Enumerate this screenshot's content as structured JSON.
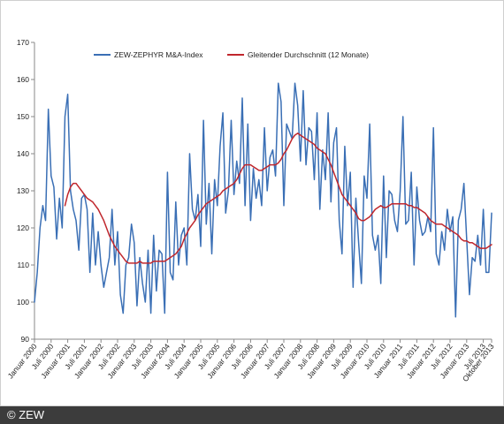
{
  "footer": {
    "credit": "© ZEW"
  },
  "chart_data": {
    "type": "line",
    "title": "",
    "xlabel": "",
    "ylabel": "",
    "ylim": [
      90,
      170
    ],
    "yticks": [
      90,
      100,
      110,
      120,
      130,
      140,
      150,
      160,
      170
    ],
    "grid": false,
    "legend_position": "top",
    "x_tick_labels": [
      "Januar 2000",
      "Juli 2000",
      "Januar 2001",
      "Juli 2001",
      "Januar 2002",
      "Juli 2002",
      "Januar 2003",
      "Juli 2003",
      "Januar 2004",
      "Juli 2004",
      "Januar 2005",
      "Juli 2005",
      "Januar 2006",
      "Juli 2006",
      "Januar 2007",
      "Juli 2007",
      "Januar 2008",
      "Juli 2008",
      "Januar 2009",
      "Juli 2009",
      "Januar 2010",
      "Juli 2010",
      "Januar 2011",
      "Juli 2011",
      "Januar 2012",
      "Juli 2012",
      "Januar 2013",
      "Juli 2013",
      "Oktober 2013"
    ],
    "x_tick_months": [
      0,
      6,
      12,
      18,
      24,
      30,
      36,
      42,
      48,
      54,
      60,
      66,
      72,
      78,
      84,
      90,
      96,
      102,
      108,
      114,
      120,
      126,
      132,
      138,
      144,
      150,
      156,
      162,
      165
    ],
    "x_range_months": [
      0,
      165
    ],
    "series": [
      {
        "name": "ZEW-ZEPHYR M&A-Index",
        "color": "#3a6fb5",
        "values": [
          100,
          108,
          120,
          126,
          122,
          152,
          134,
          131,
          117,
          128,
          120,
          150,
          156,
          130,
          125,
          122,
          114,
          128,
          129,
          125,
          108,
          124,
          110,
          119,
          110,
          104,
          108,
          112,
          125,
          110,
          119,
          102,
          97,
          110,
          112,
          121,
          116,
          99,
          112,
          105,
          100,
          114,
          97,
          118,
          103,
          114,
          113,
          97,
          135,
          108,
          106,
          127,
          110,
          118,
          120,
          110,
          140,
          125,
          122,
          129,
          115,
          149,
          121,
          132,
          113,
          133,
          126,
          142,
          151,
          124,
          130,
          149,
          129,
          138,
          132,
          155,
          126,
          148,
          122,
          136,
          128,
          133,
          126,
          147,
          130,
          139,
          141,
          134,
          159,
          154,
          126,
          148,
          146,
          144,
          159,
          153,
          138,
          157,
          137,
          147,
          146,
          133,
          151,
          125,
          141,
          133,
          151,
          127,
          143,
          147,
          122,
          113,
          142,
          126,
          135,
          104,
          128,
          116,
          105,
          134,
          128,
          148,
          118,
          114,
          118,
          105,
          134,
          112,
          130,
          129,
          122,
          119,
          130,
          150,
          121,
          122,
          135,
          110,
          131,
          122,
          118,
          119,
          123,
          119,
          147,
          113,
          110,
          119,
          114,
          125,
          119,
          123,
          96,
          122,
          125,
          132,
          117,
          102,
          112,
          111,
          118,
          110,
          125,
          108,
          108,
          124
        ],
        "width": 1.5
      },
      {
        "name": "Gleitender Durchschnitt (12 Monate)",
        "color": "#c0272d",
        "values": [
          null,
          null,
          null,
          null,
          null,
          null,
          null,
          null,
          null,
          null,
          null,
          126,
          129,
          131,
          132,
          132,
          131,
          130,
          129,
          128,
          127.5,
          127,
          126,
          125,
          123.5,
          122,
          120,
          118,
          116.5,
          115,
          114,
          113,
          112,
          111,
          110.5,
          110.5,
          110.5,
          110.5,
          111,
          110.5,
          110.5,
          110.5,
          110.5,
          111,
          111,
          111,
          111,
          111,
          111.5,
          112,
          112.5,
          113,
          114,
          115,
          117,
          118.5,
          120,
          121,
          122,
          123.5,
          124.5,
          125.5,
          126.5,
          127,
          127.5,
          128,
          128.5,
          129,
          130,
          130.5,
          131,
          131.5,
          132,
          133,
          134.5,
          136,
          137,
          137,
          137,
          136.5,
          136,
          135.5,
          135.5,
          136,
          136.5,
          137,
          137,
          137,
          137.5,
          138.5,
          140,
          141,
          142.5,
          144,
          145,
          145.5,
          145,
          144.5,
          144,
          143.5,
          143,
          142.5,
          141.5,
          141,
          140.5,
          140,
          138.5,
          137,
          135,
          133,
          131,
          129,
          128,
          127,
          126,
          125,
          124,
          122.5,
          122,
          122,
          122.5,
          123,
          124,
          125,
          125.5,
          126,
          125.5,
          125.5,
          126,
          126.5,
          126.5,
          126.5,
          126.5,
          126.5,
          126.5,
          126,
          126,
          125.5,
          125.5,
          125,
          124.5,
          124,
          123,
          122,
          121.5,
          121,
          121,
          121,
          120.5,
          120,
          119.5,
          119,
          118.5,
          118,
          117,
          116.5,
          116.5,
          116,
          116,
          115.5,
          115,
          114.5,
          114.5,
          114.5,
          115,
          115.5
        ],
        "width": 1.5
      }
    ]
  }
}
